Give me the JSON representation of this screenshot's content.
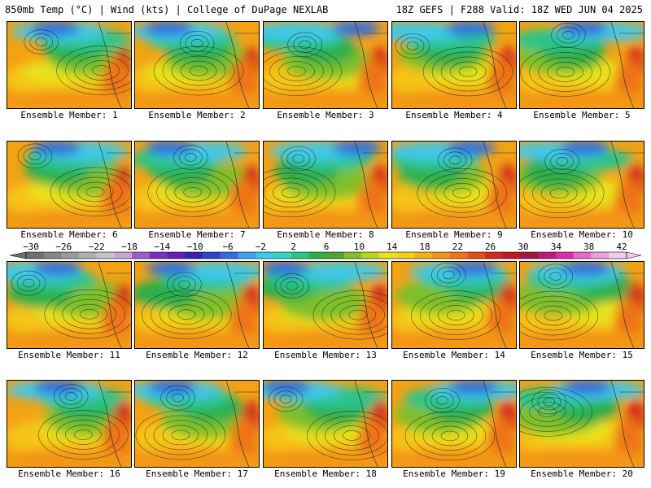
{
  "header": {
    "left": "850mb Temp (°C) | Wind (kts) | College of DuPage NEXLAB",
    "right": "18Z GEFS | F288 Valid: 18Z WED JUN 04 2025"
  },
  "members": [
    "Ensemble Member: 1",
    "Ensemble Member: 2",
    "Ensemble Member: 3",
    "Ensemble Member: 4",
    "Ensemble Member: 5",
    "Ensemble Member: 6",
    "Ensemble Member: 7",
    "Ensemble Member: 8",
    "Ensemble Member: 9",
    "Ensemble Member: 10",
    "Ensemble Member: 11",
    "Ensemble Member: 12",
    "Ensemble Member: 13",
    "Ensemble Member: 14",
    "Ensemble Member: 15",
    "Ensemble Member: 16",
    "Ensemble Member: 17",
    "Ensemble Member: 18",
    "Ensemble Member: 19",
    "Ensemble Member: 20"
  ],
  "colorbar": {
    "labels": [
      "−30",
      "−26",
      "−22",
      "−18",
      "−14",
      "−10",
      "−6",
      "−2",
      "2",
      "6",
      "10",
      "14",
      "18",
      "22",
      "26",
      "30",
      "34",
      "38",
      "42"
    ],
    "colors": [
      "#6f6f6f",
      "#858585",
      "#9a9a9a",
      "#b0b0b0",
      "#c4c4c4",
      "#c9a4d9",
      "#a15bc9",
      "#7b2fc0",
      "#6a1bb8",
      "#3a1fb0",
      "#2a45c8",
      "#2f6ee0",
      "#3fa0ee",
      "#3fc8e8",
      "#2fd6c0",
      "#2bc48a",
      "#2fae4a",
      "#4aa832",
      "#7fbf2a",
      "#b9d61f",
      "#e8e21a",
      "#f5cf16",
      "#f6b012",
      "#f39412",
      "#ee7414",
      "#e44d16",
      "#d32a1a",
      "#bf1a1e",
      "#a01a40",
      "#c21a7a",
      "#e02ab0",
      "#e56ad0",
      "#eaa0e0",
      "#f3caf0"
    ]
  }
}
